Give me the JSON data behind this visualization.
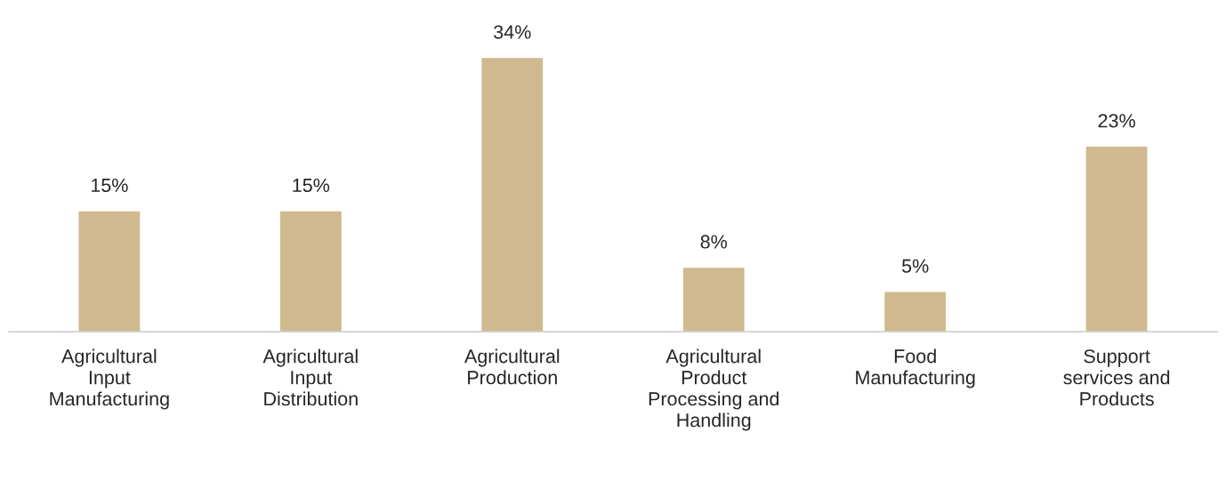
{
  "chart_data": {
    "type": "bar",
    "categories": [
      "Agricultural\nInput\nManufacturing",
      "Agricultural\nInput\nDistribution",
      "Agricultural\nProduction",
      "Agricultural\nProduct\nProcessing and\nHandling",
      "Food\nManufacturing",
      "Support\nservices and\nProducts"
    ],
    "values": [
      15,
      15,
      34,
      8,
      5,
      23
    ],
    "value_labels": [
      "15%",
      "15%",
      "34%",
      "8%",
      "5%",
      "23%"
    ],
    "color": "#d0b98f",
    "grid": false,
    "legend": false
  }
}
